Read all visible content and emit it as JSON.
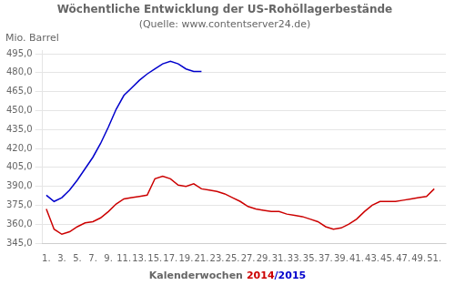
{
  "chart_data": {
    "type": "line",
    "title": "Wöchentliche Entwicklung der US-Rohöllagerbestände",
    "subtitle": "(Quelle: www.contentserver24.de)",
    "ylabel": "Mio. Barrel",
    "xlabel": [
      {
        "text": "Kalenderwochen"
      },
      {
        "text": "2014",
        "color": "#cc0000"
      },
      {
        "text": "/2015",
        "color": "#0000cc"
      }
    ],
    "xlim": [
      0.5,
      52.5
    ],
    "xticks": [
      {
        "value": 1,
        "label": "1."
      },
      {
        "value": 3,
        "label": "3."
      },
      {
        "value": 5,
        "label": "5."
      },
      {
        "value": 7,
        "label": "7."
      },
      {
        "value": 9,
        "label": "9."
      },
      {
        "value": 11,
        "label": "11."
      },
      {
        "value": 13,
        "label": "13."
      },
      {
        "value": 15,
        "label": "15."
      },
      {
        "value": 17,
        "label": "17."
      },
      {
        "value": 19,
        "label": "19."
      },
      {
        "value": 21,
        "label": "21."
      },
      {
        "value": 23,
        "label": "23."
      },
      {
        "value": 25,
        "label": "25."
      },
      {
        "value": 27,
        "label": "27."
      },
      {
        "value": 29,
        "label": "29."
      },
      {
        "value": 31,
        "label": "31."
      },
      {
        "value": 33,
        "label": "33."
      },
      {
        "value": 35,
        "label": "35."
      },
      {
        "value": 37,
        "label": "37."
      },
      {
        "value": 39,
        "label": "39."
      },
      {
        "value": 41,
        "label": "41."
      },
      {
        "value": 43,
        "label": "43."
      },
      {
        "value": 45,
        "label": "45."
      },
      {
        "value": 47,
        "label": "47."
      },
      {
        "value": 49,
        "label": "49."
      },
      {
        "value": 51,
        "label": "51."
      }
    ],
    "ylim": [
      345.0,
      497.5
    ],
    "yticks": [
      {
        "value": 345.0,
        "label": "345,0"
      },
      {
        "value": 360.0,
        "label": "360,0"
      },
      {
        "value": 375.0,
        "label": "375,0"
      },
      {
        "value": 390.0,
        "label": "390,0"
      },
      {
        "value": 405.0,
        "label": "405,0"
      },
      {
        "value": 420.0,
        "label": "420,0"
      },
      {
        "value": 435.0,
        "label": "435,0"
      },
      {
        "value": 450.0,
        "label": "450,0"
      },
      {
        "value": 465.0,
        "label": "465,0"
      },
      {
        "value": 480.0,
        "label": "480,0"
      },
      {
        "value": 495.0,
        "label": "495,0"
      }
    ],
    "grid": "y",
    "series": [
      {
        "color": "#0000cc",
        "x": [
          1,
          2,
          3,
          4,
          5,
          6,
          7,
          8,
          9,
          10,
          11,
          12,
          13,
          14,
          15,
          16,
          17,
          18,
          19,
          20,
          21
        ],
        "values": [
          383,
          378,
          381,
          387,
          395,
          404,
          413,
          424,
          437,
          451,
          462,
          468,
          474,
          479,
          483,
          487,
          489,
          487,
          483,
          481,
          481
        ]
      },
      {
        "color": "#cc0000",
        "x": [
          1,
          2,
          3,
          4,
          5,
          6,
          7,
          8,
          9,
          10,
          11,
          12,
          13,
          14,
          15,
          16,
          17,
          18,
          19,
          20,
          21,
          22,
          23,
          24,
          25,
          26,
          27,
          28,
          29,
          30,
          31,
          32,
          33,
          34,
          35,
          36,
          37,
          38,
          39,
          40,
          41,
          42,
          43,
          44,
          45,
          46,
          47,
          48,
          49,
          50,
          51
        ],
        "values": [
          372,
          356,
          352,
          354,
          358,
          361,
          362,
          365,
          370,
          376,
          380,
          381,
          382,
          383,
          396,
          398,
          396,
          391,
          390,
          392,
          388,
          387,
          386,
          384,
          381,
          378,
          374,
          372,
          371,
          370,
          370,
          368,
          367,
          366,
          364,
          362,
          358,
          356,
          357,
          360,
          364,
          370,
          375,
          378,
          378,
          378,
          379,
          380,
          381,
          382,
          388
        ]
      }
    ]
  }
}
